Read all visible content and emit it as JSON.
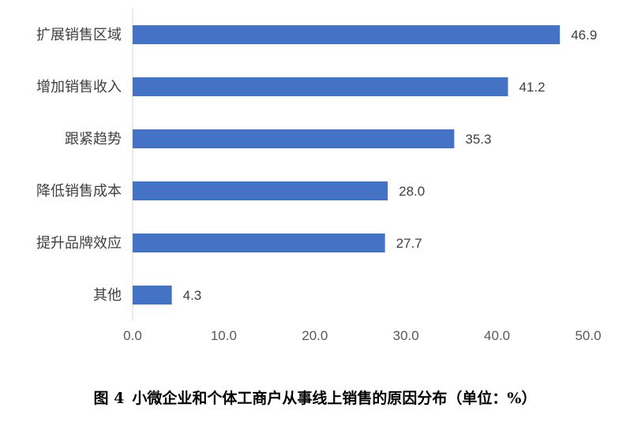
{
  "caption": {
    "figure_number": "图 4",
    "text": "小微企业和个体工商户从事线上销售的原因分布（单位：%）"
  },
  "colors": {
    "bar": "#4472c4",
    "text": "#404040",
    "axis": "#d9d9d9"
  },
  "chart_data": {
    "type": "bar",
    "orientation": "horizontal",
    "categories": [
      "扩展销售区域",
      "增加销售收入",
      "跟紧趋势",
      "降低销售成本",
      "提升品牌效应",
      "其他"
    ],
    "values": [
      46.9,
      41.2,
      35.3,
      28.0,
      27.7,
      4.3
    ],
    "value_labels": [
      "46.9",
      "41.2",
      "35.3",
      "28.0",
      "27.7",
      "4.3"
    ],
    "xlim": [
      0,
      50
    ],
    "x_ticks": [
      0,
      10,
      20,
      30,
      40,
      50
    ],
    "x_tick_labels": [
      "0.0",
      "10.0",
      "20.0",
      "30.0",
      "40.0",
      "50.0"
    ],
    "grid": false,
    "legend": "none"
  }
}
